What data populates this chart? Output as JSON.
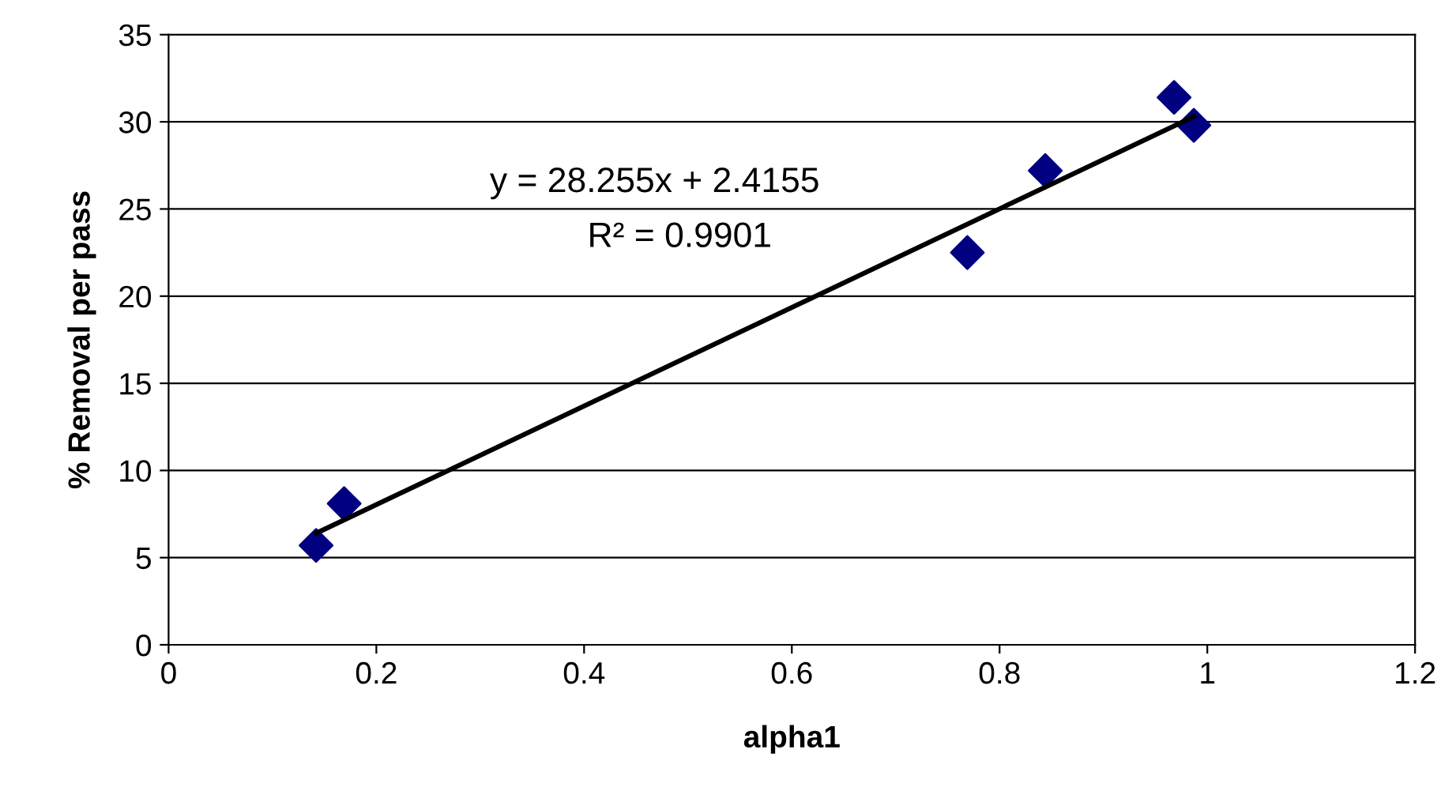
{
  "chart_data": {
    "type": "scatter",
    "xlabel": "alpha1",
    "ylabel": "% Removal per pass",
    "xlim": [
      0,
      1.2
    ],
    "xticks": [
      0,
      0.2,
      0.4,
      0.6,
      0.8,
      1,
      1.2
    ],
    "ylim": [
      0,
      35
    ],
    "yticks": [
      0,
      5,
      10,
      15,
      20,
      25,
      30,
      35
    ],
    "grid": "y",
    "marker": "diamond",
    "series": [
      {
        "color": "#000080",
        "x": [
          0.142,
          0.169,
          0.769,
          0.844,
          0.968,
          0.987
        ],
        "values": [
          5.7,
          8.1,
          22.5,
          27.2,
          31.4,
          29.8
        ]
      },
      {
        "type": "line",
        "color": "#000000",
        "marker": "none",
        "line_style": "solid",
        "x": [
          0.142,
          0.987
        ],
        "values": [
          6.4,
          30.3
        ]
      }
    ],
    "annotations": [
      "y = 28.255x + 2.4155",
      "R² = 0.9901"
    ]
  }
}
